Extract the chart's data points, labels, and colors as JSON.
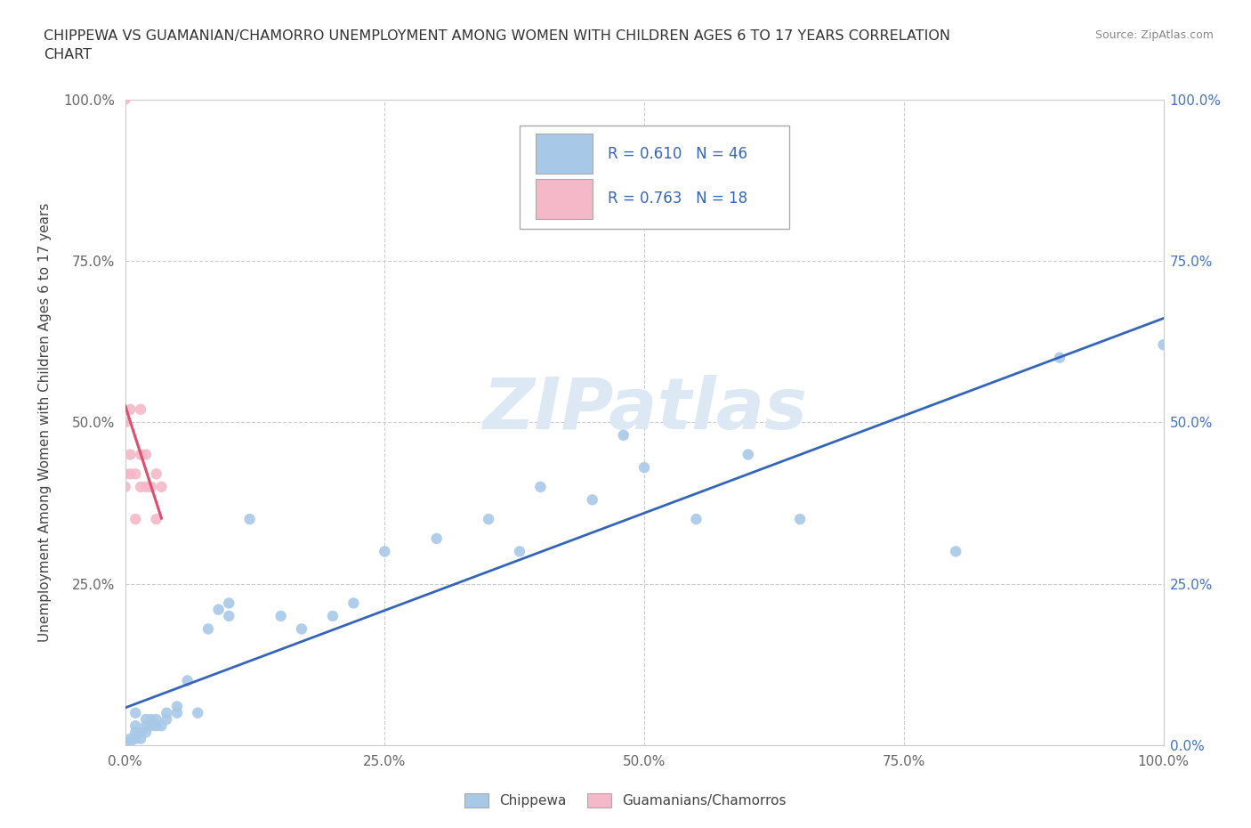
{
  "title": "CHIPPEWA VS GUAMANIAN/CHAMORRO UNEMPLOYMENT AMONG WOMEN WITH CHILDREN AGES 6 TO 17 YEARS CORRELATION\nCHART",
  "source": "Source: ZipAtlas.com",
  "ylabel": "Unemployment Among Women with Children Ages 6 to 17 years",
  "chippewa_R": 0.61,
  "chippewa_N": 46,
  "guamanian_R": 0.763,
  "guamanian_N": 18,
  "chippewa_color": "#a8c8e8",
  "guamanian_color": "#f4b8c8",
  "chippewa_line_color": "#3366bb",
  "guamanian_line_color": "#e05070",
  "watermark_color": "#dde8f5",
  "chippewa_x": [
    0.0,
    0.005,
    0.005,
    0.01,
    0.01,
    0.01,
    0.01,
    0.015,
    0.015,
    0.02,
    0.02,
    0.02,
    0.025,
    0.025,
    0.03,
    0.03,
    0.035,
    0.04,
    0.04,
    0.05,
    0.05,
    0.06,
    0.07,
    0.08,
    0.09,
    0.1,
    0.1,
    0.12,
    0.15,
    0.17,
    0.2,
    0.22,
    0.25,
    0.3,
    0.35,
    0.38,
    0.4,
    0.45,
    0.48,
    0.5,
    0.55,
    0.6,
    0.65,
    0.8,
    0.9,
    1.0
  ],
  "chippewa_y": [
    0.0,
    0.005,
    0.01,
    0.01,
    0.02,
    0.03,
    0.05,
    0.01,
    0.02,
    0.02,
    0.03,
    0.04,
    0.03,
    0.04,
    0.03,
    0.04,
    0.03,
    0.04,
    0.05,
    0.05,
    0.06,
    0.1,
    0.05,
    0.18,
    0.21,
    0.2,
    0.22,
    0.35,
    0.2,
    0.18,
    0.2,
    0.22,
    0.3,
    0.32,
    0.35,
    0.3,
    0.4,
    0.38,
    0.48,
    0.43,
    0.35,
    0.45,
    0.35,
    0.3,
    0.6,
    0.62
  ],
  "guamanian_x": [
    0.0,
    0.0,
    0.0,
    0.0,
    0.005,
    0.005,
    0.005,
    0.01,
    0.01,
    0.015,
    0.015,
    0.015,
    0.02,
    0.02,
    0.025,
    0.03,
    0.03,
    0.035
  ],
  "guamanian_y": [
    0.4,
    0.42,
    0.5,
    1.0,
    0.42,
    0.45,
    0.52,
    0.35,
    0.42,
    0.4,
    0.45,
    0.52,
    0.4,
    0.45,
    0.4,
    0.35,
    0.42,
    0.4
  ],
  "xlim": [
    0.0,
    1.0
  ],
  "ylim": [
    0.0,
    1.0
  ],
  "xticks": [
    0.0,
    0.25,
    0.5,
    0.75,
    1.0
  ],
  "xtick_labels": [
    "0.0%",
    "25.0%",
    "50.0%",
    "75.0%",
    "100.0%"
  ],
  "yticks": [
    0.0,
    0.25,
    0.5,
    0.75,
    1.0
  ],
  "left_ytick_labels": [
    "",
    "25.0%",
    "50.0%",
    "75.0%",
    "100.0%"
  ],
  "right_ytick_labels": [
    "0.0%",
    "25.0%",
    "50.0%",
    "75.0%",
    "100.0%"
  ]
}
